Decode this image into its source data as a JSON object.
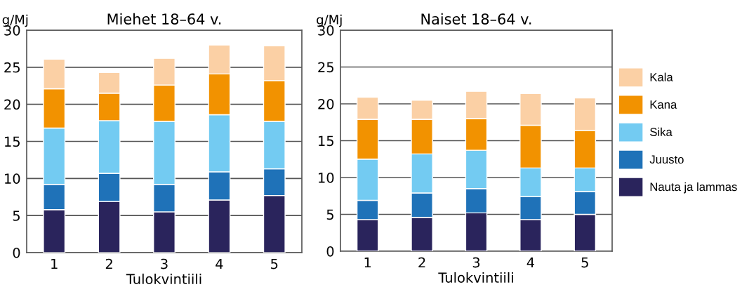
{
  "chart_data": [
    {
      "type": "bar",
      "title": "Miehet 18–64 v.",
      "ylabel": "g/Mj",
      "xlabel": "Tulokvintiili",
      "categories": [
        "1",
        "2",
        "3",
        "4",
        "5"
      ],
      "stacked": true,
      "ylim": [
        0,
        30
      ],
      "yticks": [
        0,
        5,
        10,
        15,
        20,
        25,
        30
      ],
      "grid": "y",
      "legend": "right",
      "series": [
        {
          "name": "Nauta ja lammas",
          "color": "#2a245c",
          "values": [
            5.8,
            6.9,
            5.5,
            7.1,
            7.7
          ]
        },
        {
          "name": "Juusto",
          "color": "#1f72b8",
          "values": [
            3.4,
            3.8,
            3.7,
            3.8,
            3.6
          ]
        },
        {
          "name": "Sika",
          "color": "#73cbf2",
          "values": [
            7.6,
            7.1,
            8.5,
            7.7,
            6.4
          ]
        },
        {
          "name": "Kana",
          "color": "#f29200",
          "values": [
            5.3,
            3.7,
            4.9,
            5.5,
            5.5
          ]
        },
        {
          "name": "Kala",
          "color": "#fbd0a5",
          "values": [
            4.0,
            2.8,
            3.6,
            3.9,
            4.7
          ]
        }
      ]
    },
    {
      "type": "bar",
      "title": "Naiset 18–64 v.",
      "ylabel": "g/Mj",
      "xlabel": "Tulokvintiili",
      "categories": [
        "1",
        "2",
        "3",
        "4",
        "5"
      ],
      "stacked": true,
      "ylim": [
        0,
        30
      ],
      "yticks": [
        0,
        5,
        10,
        15,
        20,
        25,
        30
      ],
      "grid": "y",
      "series": [
        {
          "color": "#2a245c",
          "values": [
            4.3,
            4.6,
            5.2,
            4.3,
            5.0
          ]
        },
        {
          "color": "#1f72b8",
          "values": [
            2.6,
            3.3,
            3.3,
            3.1,
            3.1
          ]
        },
        {
          "color": "#73cbf2",
          "values": [
            5.6,
            5.3,
            5.2,
            3.9,
            3.2
          ]
        },
        {
          "color": "#f29200",
          "values": [
            5.4,
            4.7,
            4.3,
            5.8,
            5.1
          ]
        },
        {
          "color": "#fbd0a5",
          "values": [
            3.0,
            2.6,
            3.7,
            4.3,
            4.4
          ]
        }
      ]
    }
  ]
}
